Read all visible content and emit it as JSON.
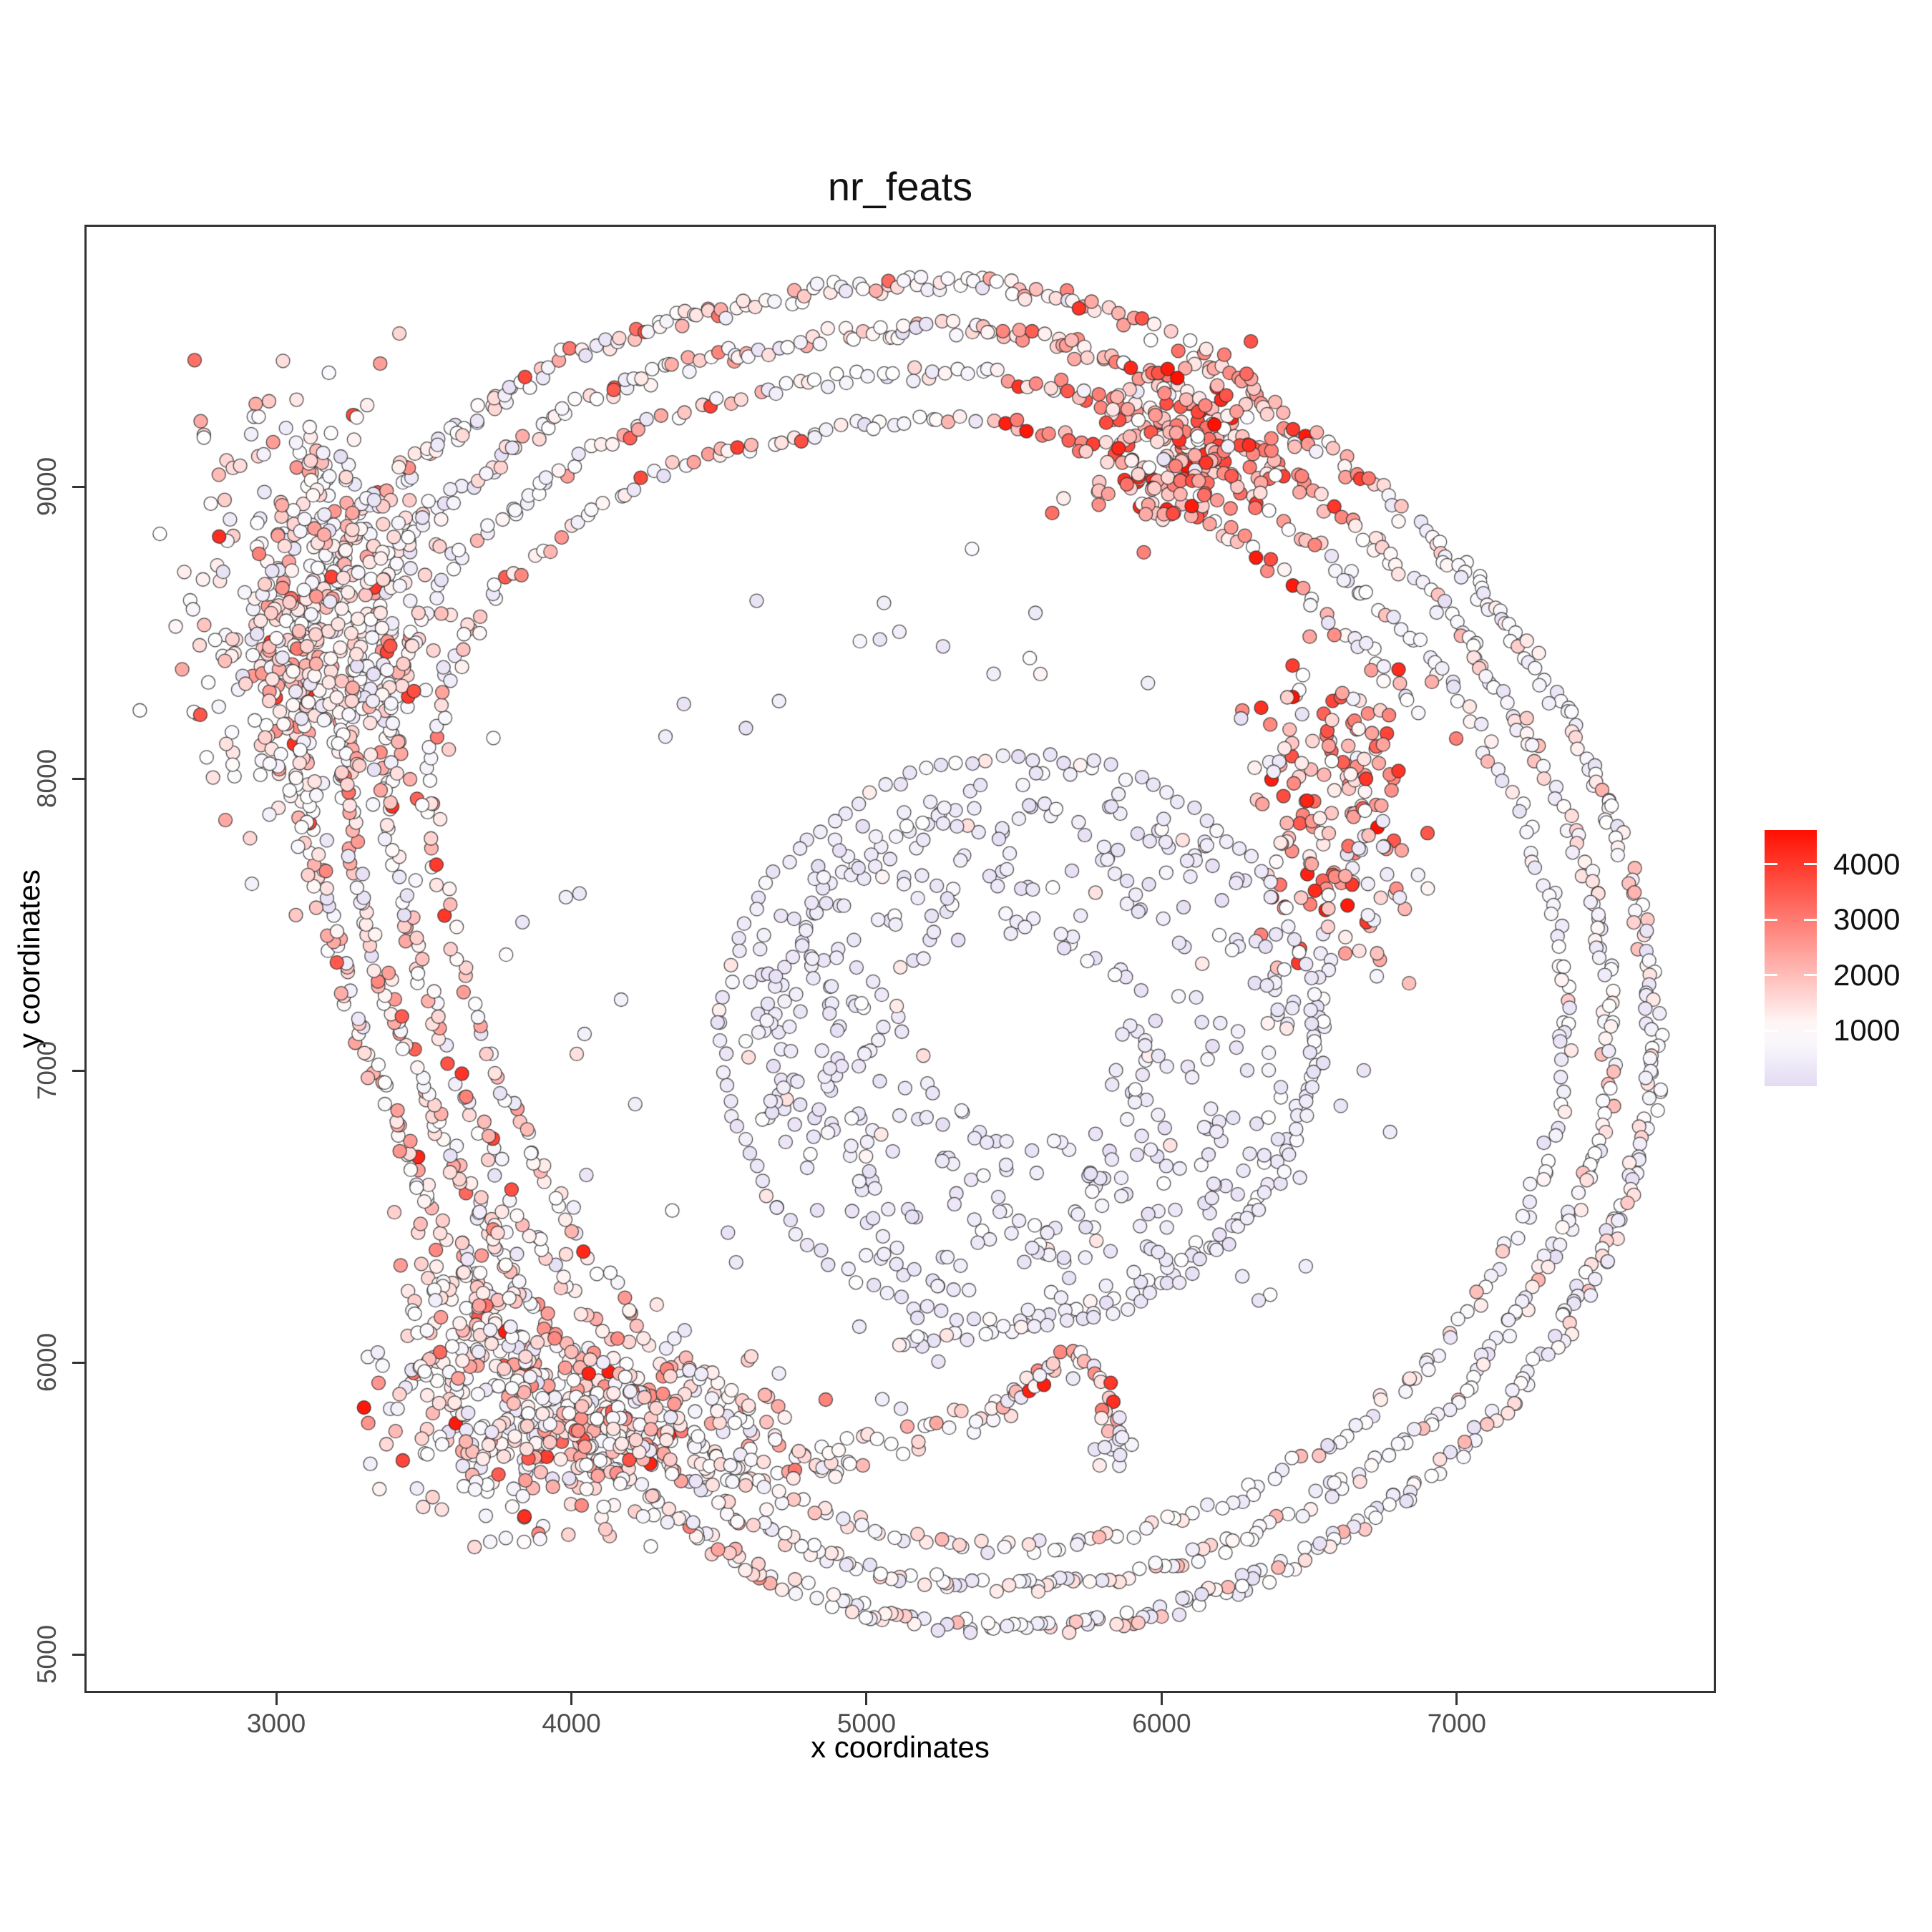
{
  "title": "nr_feats",
  "chart_data": {
    "type": "scatter",
    "title": "nr_feats",
    "xlabel": "x coordinates",
    "ylabel": "y coordinates",
    "xlim": [
      2350,
      7878
    ],
    "ylim": [
      4868,
      9898
    ],
    "x_ticks": [
      3000,
      4000,
      5000,
      6000,
      7000
    ],
    "y_ticks": [
      5000,
      6000,
      7000,
      8000,
      9000
    ],
    "grid": false,
    "legend_position": "right",
    "legend": {
      "ticks": [
        1000,
        2000,
        3000,
        4000
      ],
      "domain": [
        0,
        4615
      ]
    },
    "color_scale": {
      "min": 0,
      "mid": 1000,
      "max": 4615,
      "low": "#E3DBF3",
      "mid_color": "#FFFFFF",
      "high": "#FF1000"
    },
    "point_style": {
      "radius_px": 9.5,
      "stroke": "rgba(50,50,50,0.85)",
      "stroke_width": 1.3
    },
    "seed": 99,
    "palettes": {
      "band": [
        [
          0.34,
          650,
          1100
        ],
        [
          0.27,
          1100,
          1650
        ],
        [
          0.2,
          120,
          620
        ],
        [
          0.16,
          1650,
          2500
        ],
        [
          0.03,
          2500,
          4000
        ]
      ],
      "hot": [
        [
          0.13,
          800,
          1300
        ],
        [
          0.22,
          1300,
          1900
        ],
        [
          0.04,
          150,
          600
        ],
        [
          0.36,
          1900,
          2900
        ],
        [
          0.25,
          2900,
          4650
        ]
      ],
      "band_left": [
        [
          0.26,
          650,
          1150
        ],
        [
          0.3,
          1150,
          1750
        ],
        [
          0.14,
          120,
          620
        ],
        [
          0.22,
          1750,
          2600
        ],
        [
          0.08,
          2600,
          4300
        ]
      ],
      "pink_blob_band": [
        [
          0.3,
          700,
          1150
        ],
        [
          0.33,
          1150,
          1700
        ],
        [
          0.14,
          120,
          620
        ],
        [
          0.19,
          1700,
          2600
        ],
        [
          0.04,
          2600,
          4400
        ]
      ],
      "band_soft": [
        [
          0.4,
          650,
          1050
        ],
        [
          0.22,
          1050,
          1500
        ],
        [
          0.3,
          120,
          620
        ],
        [
          0.08,
          1500,
          2200
        ]
      ],
      "band_soft2": [
        [
          0.36,
          650,
          1050
        ],
        [
          0.3,
          1050,
          1500
        ],
        [
          0.24,
          120,
          620
        ],
        [
          0.1,
          1500,
          2200
        ]
      ],
      "pink_blob": [
        [
          0.3,
          700,
          1150
        ],
        [
          0.33,
          1150,
          1750
        ],
        [
          0.15,
          120,
          650
        ],
        [
          0.18,
          1750,
          2600
        ],
        [
          0.04,
          2600,
          4200
        ]
      ],
      "pink_blob_red": [
        [
          0.24,
          700,
          1150
        ],
        [
          0.33,
          1150,
          1800
        ],
        [
          0.12,
          120,
          650
        ],
        [
          0.24,
          1800,
          2800
        ],
        [
          0.07,
          2800,
          4650
        ]
      ],
      "red_cluster": [
        [
          0.08,
          900,
          1300
        ],
        [
          0.2,
          1300,
          1900
        ],
        [
          0.05,
          200,
          650
        ],
        [
          0.37,
          1900,
          3000
        ],
        [
          0.3,
          3000,
          4650
        ]
      ],
      "red_cluster2": [
        [
          0.1,
          900,
          1300
        ],
        [
          0.2,
          1300,
          1900
        ],
        [
          0.12,
          200,
          650
        ],
        [
          0.33,
          1900,
          3000
        ],
        [
          0.25,
          3000,
          4650
        ]
      ],
      "tail_pink": [
        [
          0.3,
          700,
          1100
        ],
        [
          0.34,
          1100,
          1600
        ],
        [
          0.12,
          150,
          600
        ],
        [
          0.2,
          1600,
          2400
        ],
        [
          0.04,
          2400,
          3800
        ]
      ],
      "curl_hot": [
        [
          0.1,
          800,
          1200
        ],
        [
          0.2,
          1200,
          1800
        ],
        [
          0.1,
          200,
          600
        ],
        [
          0.33,
          1800,
          2900
        ],
        [
          0.27,
          2900,
          4650
        ]
      ],
      "lavender_band": [
        [
          0.66,
          150,
          620
        ],
        [
          0.24,
          650,
          1000
        ],
        [
          0.1,
          1000,
          1500
        ]
      ],
      "lavender_band2": [
        [
          0.8,
          150,
          600
        ],
        [
          0.15,
          620,
          1000
        ],
        [
          0.05,
          1000,
          1400
        ]
      ],
      "lavender_scatter": [
        [
          0.8,
          120,
          580
        ],
        [
          0.12,
          600,
          1000
        ],
        [
          0.08,
          1000,
          1600
        ]
      ]
    },
    "ring_center": [
      5350,
      7300
    ],
    "ring_path": [
      [
        3616,
        9196
      ],
      [
        3955,
        9441
      ],
      [
        4367,
        9576
      ],
      [
        4852,
        9674
      ],
      [
        5288,
        9703
      ],
      [
        5701,
        9650
      ],
      [
        6064,
        9490
      ],
      [
        6404,
        9245
      ],
      [
        6743,
        8975
      ],
      [
        7034,
        8706
      ],
      [
        7276,
        8387
      ],
      [
        7470,
        8020
      ],
      [
        7604,
        7652
      ],
      [
        7669,
        7260
      ],
      [
        7664,
        6868
      ],
      [
        7543,
        6475
      ],
      [
        7361,
        6108
      ],
      [
        7119,
        5789
      ],
      [
        6791,
        5520
      ],
      [
        6404,
        5287
      ],
      [
        5967,
        5132
      ],
      [
        5507,
        5078
      ],
      [
        5046,
        5132
      ],
      [
        4634,
        5275
      ],
      [
        4295,
        5495
      ],
      [
        4004,
        5789
      ],
      [
        3761,
        6132
      ],
      [
        3543,
        6525
      ],
      [
        3349,
        6941
      ],
      [
        3204,
        7382
      ],
      [
        3107,
        7824
      ],
      [
        3082,
        8240
      ],
      [
        3155,
        8632
      ],
      [
        3349,
        8975
      ]
    ],
    "ring_zones": [
      {
        "from": 295,
        "to": 410,
        "palette": "band_soft"
      },
      {
        "from": 50,
        "to": 88,
        "palette": "hot"
      },
      {
        "from": 88,
        "to": 152,
        "palette": "band"
      },
      {
        "from": 152,
        "to": 210,
        "palette": "band_left"
      },
      {
        "from": 210,
        "to": 252,
        "palette": "pink_blob_band"
      },
      {
        "from": 252,
        "to": 295,
        "palette": "band_soft2"
      }
    ],
    "structures": [
      {
        "kind": "ringpath",
        "scale": 1.0,
        "spacing": 34,
        "across": 30,
        "rows": 1.5
      },
      {
        "kind": "ringpath",
        "scale": 0.935,
        "spacing": 36,
        "across": 26,
        "rows": 1.4
      },
      {
        "kind": "ringpath",
        "scale": 0.872,
        "spacing": 40,
        "across": 24,
        "rows": 1.2
      },
      {
        "kind": "ringpath",
        "scale": 0.805,
        "spacing": 42,
        "across": 22,
        "rows": 1.1,
        "arc": [
          30,
          255
        ]
      },
      {
        "kind": "blob",
        "cx": 3130,
        "cy": 8560,
        "sx": 200,
        "sy": 350,
        "n": 500,
        "palette": "pink_blob"
      },
      {
        "kind": "blob",
        "cx": 4060,
        "cy": 5790,
        "sx": 290,
        "sy": 160,
        "n": 380,
        "palette": "pink_blob_red"
      },
      {
        "kind": "blob",
        "cx": 3640,
        "cy": 6060,
        "sx": 140,
        "sy": 230,
        "n": 140,
        "palette": "pink_blob"
      },
      {
        "kind": "path",
        "pts": [
          [
            4450,
            5600
          ],
          [
            4750,
            5640
          ],
          [
            5050,
            5720
          ],
          [
            5300,
            5790
          ],
          [
            5480,
            5860
          ]
        ],
        "spacing": 34,
        "across": 55,
        "rows": 1.6,
        "palette": "tail_pink"
      },
      {
        "kind": "path",
        "pts": [
          [
            5480,
            5860
          ],
          [
            5600,
            5960
          ],
          [
            5700,
            6030
          ],
          [
            5790,
            5990
          ],
          [
            5830,
            5880
          ],
          [
            5820,
            5760
          ]
        ],
        "spacing": 30,
        "across": 30,
        "rows": 1.5,
        "palette": "curl_hot"
      },
      {
        "kind": "blob",
        "cx": 5840,
        "cy": 5720,
        "sx": 45,
        "sy": 45,
        "n": 12,
        "palette": "lavender_band"
      },
      {
        "kind": "path",
        "pts": [
          [
            6560,
            7460
          ],
          [
            6540,
            7150
          ],
          [
            6460,
            6830
          ],
          [
            6280,
            6520
          ],
          [
            6020,
            6300
          ],
          [
            5700,
            6160
          ],
          [
            5380,
            6090
          ],
          [
            5100,
            6060
          ]
        ],
        "spacing": 40,
        "across": 25,
        "rows": 1.2,
        "palette": "lavender_band"
      },
      {
        "kind": "blob",
        "cx": 6580,
        "cy": 7880,
        "sx": 150,
        "sy": 280,
        "n": 170,
        "palette": "red_cluster2"
      },
      {
        "kind": "blob",
        "cx": 6060,
        "cy": 9120,
        "sx": 160,
        "sy": 130,
        "n": 190,
        "palette": "red_cluster"
      },
      {
        "kind": "circle",
        "cx": 5515,
        "cy": 7105,
        "rx": 1005,
        "ry": 975,
        "spacing": 52,
        "across": 18,
        "rows": 1.05,
        "palette": "lavender_band2"
      },
      {
        "kind": "circle",
        "cx": 5515,
        "cy": 7105,
        "rx": 824,
        "ry": 800,
        "spacing": 55,
        "across": 20,
        "rows": 1.0,
        "arc": [
          100,
          200
        ],
        "palette": "lavender_band2"
      },
      {
        "kind": "annulus",
        "cx": 5520,
        "cy": 7120,
        "r0": 330,
        "r1": 940,
        "squish": 0.97,
        "n": 430,
        "palette": "lavender_scatter"
      },
      {
        "kind": "annulus",
        "cx": 5300,
        "cy": 7300,
        "r0": 1120,
        "r1": 1580,
        "squish": 0.95,
        "n": 58,
        "palette": "lavender_scatter"
      }
    ]
  }
}
